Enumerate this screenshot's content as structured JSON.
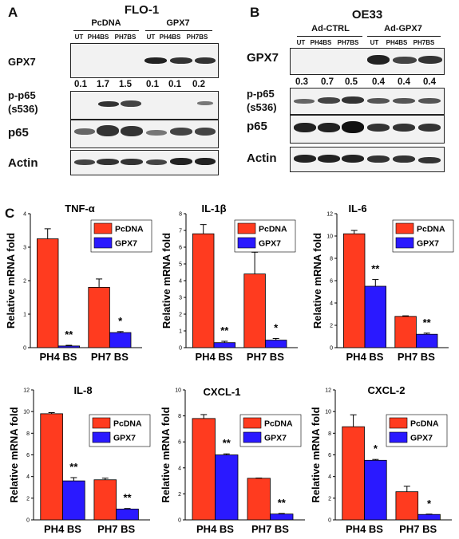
{
  "panel_a": {
    "letter": "A",
    "title": "FLO-1",
    "groups": [
      "PcDNA",
      "GPX7"
    ],
    "lanes": [
      "UT",
      "PH4BS",
      "PH7BS",
      "UT",
      "PH4BS",
      "PH7BS"
    ],
    "rows": [
      "GPX7",
      "p-p65",
      "(s536)",
      "p65",
      "Actin"
    ],
    "numbers": [
      "0.1",
      "1.7",
      "1.5",
      "0.1",
      "0.1",
      "0.2"
    ]
  },
  "panel_b": {
    "letter": "B",
    "title": "OE33",
    "groups": [
      "Ad-CTRL",
      "Ad-GPX7"
    ],
    "lanes": [
      "UT",
      "PH4BS",
      "PH7BS",
      "UT",
      "PH4BS",
      "PH7BS"
    ],
    "rows": [
      "GPX7",
      "p-p65",
      "(s536)",
      "p65",
      "Actin"
    ],
    "numbers": [
      "0.3",
      "0.7",
      "0.5",
      "0.4",
      "0.4",
      "0.4"
    ]
  },
  "panel_c": {
    "letter": "C"
  },
  "chart_data": [
    {
      "type": "bar",
      "title": "TNF-α",
      "ylabel": "Relative mRNA fold",
      "categories": [
        "PH4 BS",
        "PH7 BS"
      ],
      "ylim": [
        0,
        4
      ],
      "yticks": [
        "0",
        "1",
        "2",
        "3",
        "4"
      ],
      "series": [
        {
          "name": "PcDNA",
          "values": [
            3.25,
            1.8
          ],
          "errors": [
            0.3,
            0.25
          ]
        },
        {
          "name": "GPX7",
          "values": [
            0.05,
            0.45
          ],
          "errors": [
            0.02,
            0.03
          ]
        }
      ],
      "annotations": [
        "**",
        "*"
      ],
      "legend": "top-right"
    },
    {
      "type": "bar",
      "title": "IL-1β",
      "ylabel": "Relative mRNA fold",
      "categories": [
        "PH4 BS",
        "PH7 BS"
      ],
      "ylim": [
        0,
        8
      ],
      "yticks": [
        "0",
        "1",
        "2",
        "3",
        "4",
        "5",
        "6",
        "7",
        "8"
      ],
      "series": [
        {
          "name": "PcDNA",
          "values": [
            6.8,
            4.4
          ],
          "errors": [
            0.55,
            1.3
          ]
        },
        {
          "name": "GPX7",
          "values": [
            0.3,
            0.45
          ],
          "errors": [
            0.08,
            0.1
          ]
        }
      ],
      "annotations": [
        "**",
        "*"
      ],
      "legend": "top-right"
    },
    {
      "type": "bar",
      "title": "IL-6",
      "ylabel": "Relative mRNA fold",
      "categories": [
        "PH4 BS",
        "PH7 BS"
      ],
      "ylim": [
        0,
        12
      ],
      "yticks": [
        "0",
        "2",
        "4",
        "6",
        "8",
        "10",
        "12"
      ],
      "series": [
        {
          "name": "PcDNA",
          "values": [
            10.2,
            2.8
          ],
          "errors": [
            0.3,
            0.05
          ]
        },
        {
          "name": "GPX7",
          "values": [
            5.5,
            1.2
          ],
          "errors": [
            0.6,
            0.1
          ]
        }
      ],
      "annotations": [
        "**",
        "**"
      ],
      "legend": "top-right"
    },
    {
      "type": "bar",
      "title": "IL-8",
      "ylabel": "Relative mRNA fold",
      "categories": [
        "PH4 BS",
        "PH7 BS"
      ],
      "ylim": [
        0,
        12
      ],
      "yticks": [
        "0",
        "2",
        "4",
        "6",
        "8",
        "10",
        "12"
      ],
      "series": [
        {
          "name": "PcDNA",
          "values": [
            9.8,
            3.7
          ],
          "errors": [
            0.1,
            0.15
          ]
        },
        {
          "name": "GPX7",
          "values": [
            3.6,
            1.0
          ],
          "errors": [
            0.3,
            0.05
          ]
        }
      ],
      "annotations": [
        "**",
        "**"
      ],
      "legend": "top-right"
    },
    {
      "type": "bar",
      "title": "CXCL-1",
      "ylabel": "Relative mRNA fold",
      "categories": [
        "PH4 BS",
        "PH7 BS"
      ],
      "ylim": [
        0,
        10
      ],
      "yticks": [
        "0",
        "2",
        "4",
        "6",
        "8",
        "10"
      ],
      "series": [
        {
          "name": "PcDNA",
          "values": [
            7.8,
            3.2
          ],
          "errors": [
            0.3,
            0.02
          ]
        },
        {
          "name": "GPX7",
          "values": [
            5.0,
            0.45
          ],
          "errors": [
            0.08,
            0.04
          ]
        }
      ],
      "annotations": [
        "**",
        "**"
      ],
      "legend": "top-right"
    },
    {
      "type": "bar",
      "title": "CXCL-2",
      "ylabel": "Relative mRNA fold",
      "categories": [
        "PH4 BS",
        "PH7 BS"
      ],
      "ylim": [
        0,
        12
      ],
      "yticks": [
        "0",
        "2",
        "4",
        "6",
        "8",
        "10",
        "12"
      ],
      "series": [
        {
          "name": "PcDNA",
          "values": [
            8.6,
            2.6
          ],
          "errors": [
            1.1,
            0.5
          ]
        },
        {
          "name": "GPX7",
          "values": [
            5.5,
            0.5
          ],
          "errors": [
            0.08,
            0.03
          ]
        }
      ],
      "annotations": [
        "*",
        "*"
      ],
      "legend": "top-right"
    }
  ],
  "colors": {
    "pcdna": "#ff3b1f",
    "gpx7": "#2a19ff"
  }
}
